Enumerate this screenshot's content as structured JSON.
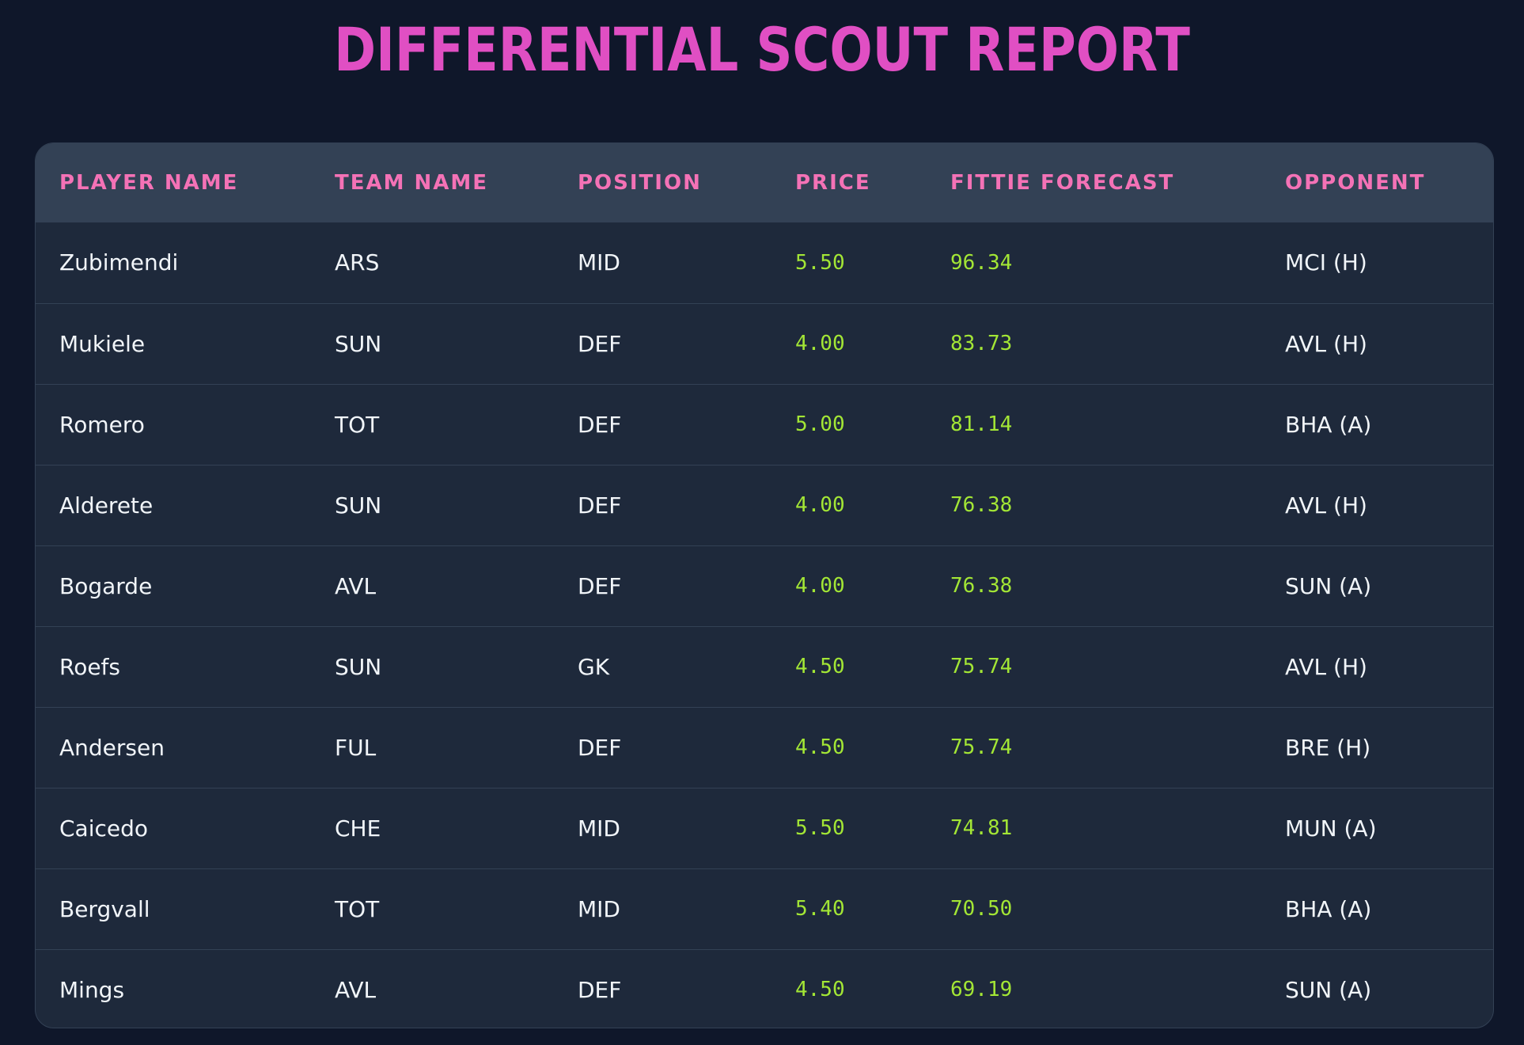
{
  "page": {
    "title": "Differential Scout Report"
  },
  "colors": {
    "background": "#0f172a",
    "title": "#e04fc3",
    "header_text": "#f472b6",
    "header_bg": "#334155",
    "row_bg": "#1e293b",
    "numeric_text": "#a3e635",
    "body_text": "#f1f5f9"
  },
  "table": {
    "headers": [
      "Player Name",
      "Team Name",
      "Position",
      "Price",
      "Fittie Forecast",
      "Opponent"
    ],
    "rows": [
      [
        "Zubimendi",
        "ARS",
        "MID",
        "5.50",
        "96.34",
        "MCI (H)"
      ],
      [
        "Mukiele",
        "SUN",
        "DEF",
        "4.00",
        "83.73",
        "AVL (H)"
      ],
      [
        "Romero",
        "TOT",
        "DEF",
        "5.00",
        "81.14",
        "BHA (A)"
      ],
      [
        "Alderete",
        "SUN",
        "DEF",
        "4.00",
        "76.38",
        "AVL (H)"
      ],
      [
        "Bogarde",
        "AVL",
        "DEF",
        "4.00",
        "76.38",
        "SUN (A)"
      ],
      [
        "Roefs",
        "SUN",
        "GK",
        "4.50",
        "75.74",
        "AVL (H)"
      ],
      [
        "Andersen",
        "FUL",
        "DEF",
        "4.50",
        "75.74",
        "BRE (H)"
      ],
      [
        "Caicedo",
        "CHE",
        "MID",
        "5.50",
        "74.81",
        "MUN (A)"
      ],
      [
        "Bergvall",
        "TOT",
        "MID",
        "5.40",
        "70.50",
        "BHA (A)"
      ],
      [
        "Mings",
        "AVL",
        "DEF",
        "4.50",
        "69.19",
        "SUN (A)"
      ]
    ]
  }
}
